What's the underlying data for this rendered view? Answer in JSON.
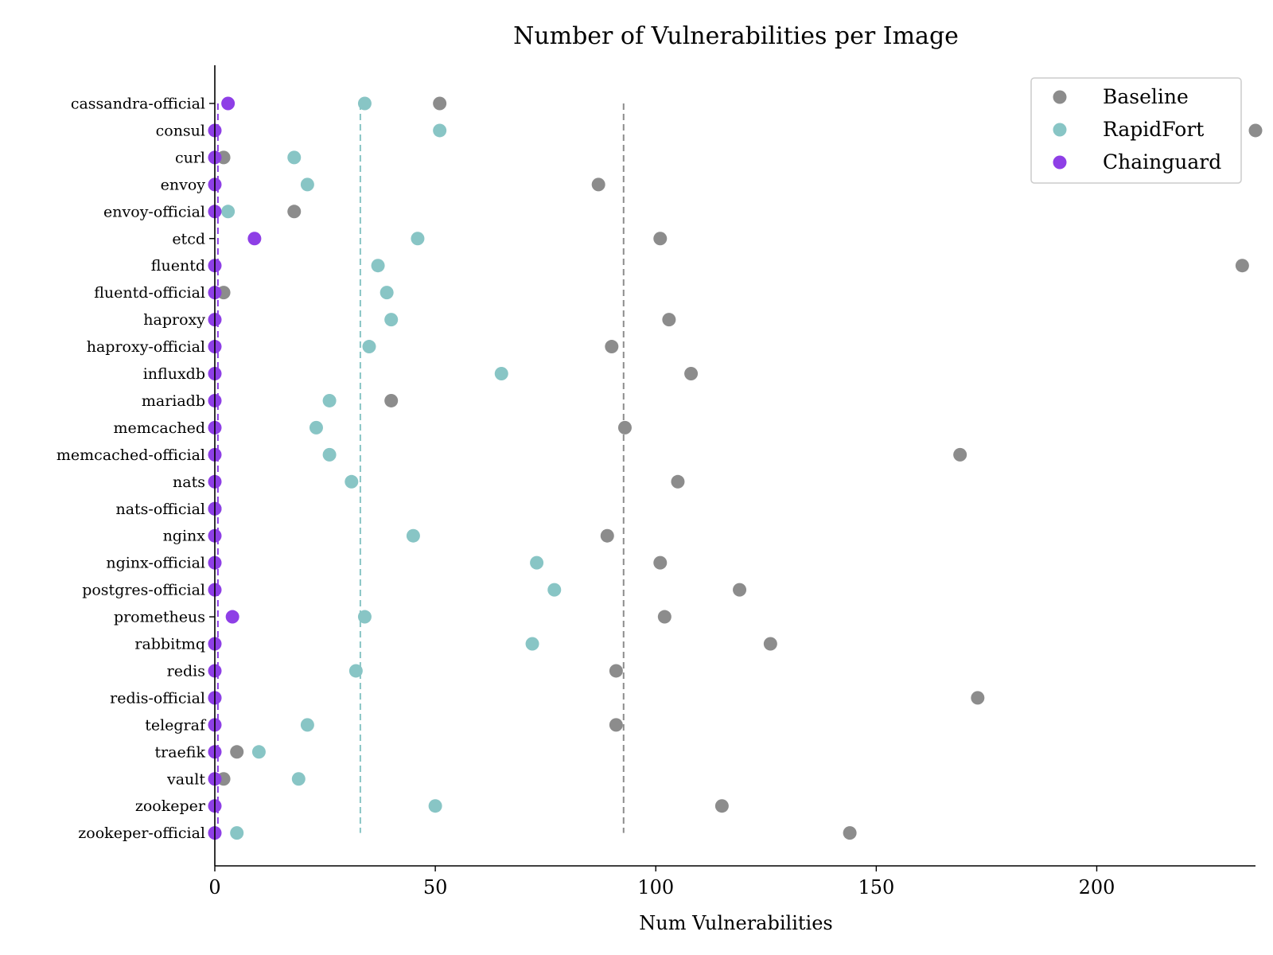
{
  "chart_data": {
    "type": "scatter",
    "title": "Number of Vulnerabilities per Image",
    "xlabel": "Num Vulnerabilities",
    "ylabel": "",
    "xlim": [
      0,
      236
    ],
    "xticks": [
      0,
      50,
      100,
      150,
      200
    ],
    "legend_placement": "top-right",
    "grid": false,
    "categories": [
      "cassandra-official",
      "consul",
      "curl",
      "envoy",
      "envoy-official",
      "etcd",
      "fluentd",
      "fluentd-official",
      "haproxy",
      "haproxy-official",
      "influxdb",
      "mariadb",
      "memcached",
      "memcached-official",
      "nats",
      "nats-official",
      "nginx",
      "nginx-official",
      "postgres-official",
      "prometheus",
      "rabbitmq",
      "redis",
      "redis-official",
      "telegraf",
      "traefik",
      "vault",
      "zookeper",
      "zookeper-official"
    ],
    "series": [
      {
        "name": "Baseline",
        "color": "#8c8c8c",
        "mean": 92.7,
        "values": [
          51,
          236,
          2,
          87,
          18,
          101,
          233,
          2,
          103,
          90,
          108,
          40,
          93,
          169,
          105,
          0,
          89,
          101,
          119,
          102,
          126,
          91,
          173,
          91,
          5,
          2,
          115,
          144
        ]
      },
      {
        "name": "RapidFort",
        "color": "#88c5c5",
        "mean": 33,
        "values": [
          34,
          51,
          18,
          21,
          3,
          46,
          37,
          39,
          40,
          35,
          65,
          26,
          23,
          26,
          31,
          0,
          45,
          73,
          77,
          34,
          72,
          32,
          0,
          21,
          10,
          19,
          50,
          5
        ]
      },
      {
        "name": "Chainguard",
        "color": "#8e3fe6",
        "mean": 0.7,
        "values": [
          3,
          0,
          0,
          0,
          0,
          9,
          0,
          0,
          0,
          0,
          0,
          0,
          0,
          0,
          0,
          0,
          0,
          0,
          0,
          4,
          0,
          0,
          0,
          0,
          0,
          0,
          0,
          0
        ]
      }
    ]
  }
}
